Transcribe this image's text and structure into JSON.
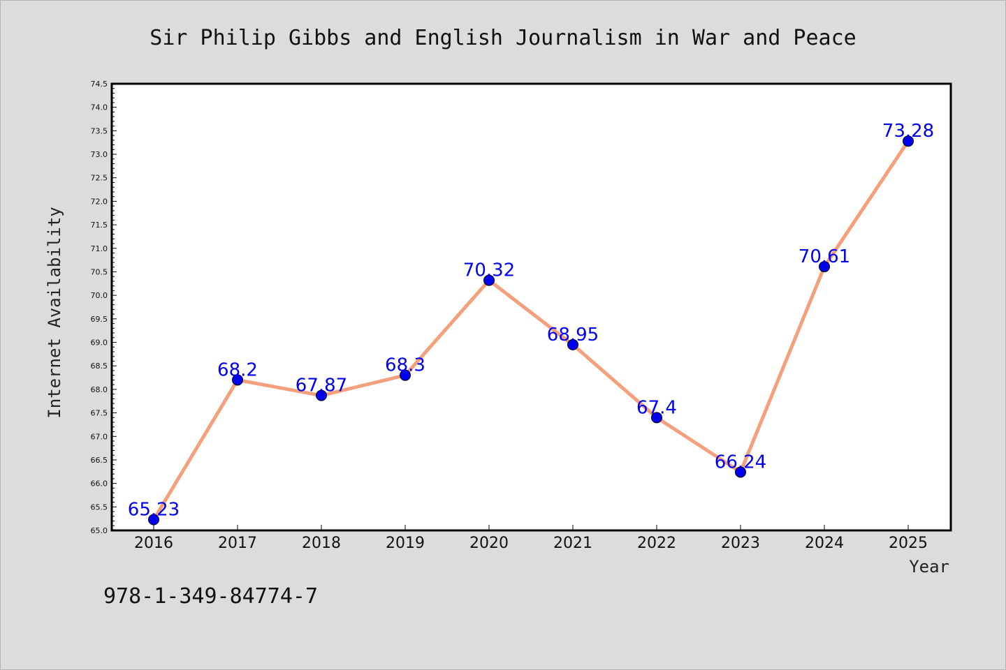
{
  "chart_data": {
    "type": "line",
    "title": "Sir Philip Gibbs and English Journalism in War and Peace",
    "xlabel": "Year",
    "ylabel": "Internet Availability",
    "categories": [
      "2016",
      "2017",
      "2018",
      "2019",
      "2020",
      "2021",
      "2022",
      "2023",
      "2024",
      "2025"
    ],
    "series": [
      {
        "values": [
          65.23,
          68.2,
          67.87,
          68.3,
          70.32,
          68.95,
          67.4,
          66.24,
          70.61,
          73.28
        ],
        "labels": [
          "65.23",
          "68.2",
          "67.87",
          "68.3",
          "70.32",
          "68.95",
          "67.4",
          "66.24",
          "70.61",
          "73.28"
        ]
      }
    ],
    "ylim": [
      65.0,
      74.5
    ],
    "yticks": [
      "65.0",
      "65.5",
      "66.0",
      "66.5",
      "67.0",
      "67.5",
      "68.0",
      "68.5",
      "69.0",
      "69.5",
      "70.0",
      "70.5",
      "71.0",
      "71.5",
      "72.0",
      "72.5",
      "73.0",
      "73.5",
      "74.0",
      "74.5"
    ],
    "grid": false,
    "colors": {
      "line": "#f4a07c",
      "marker": "#0000ee",
      "data_label": "#0000ee",
      "plot_background": "#ffffff",
      "page_background": "#dcdcdc"
    }
  },
  "footnote": "978-1-349-84774-7"
}
